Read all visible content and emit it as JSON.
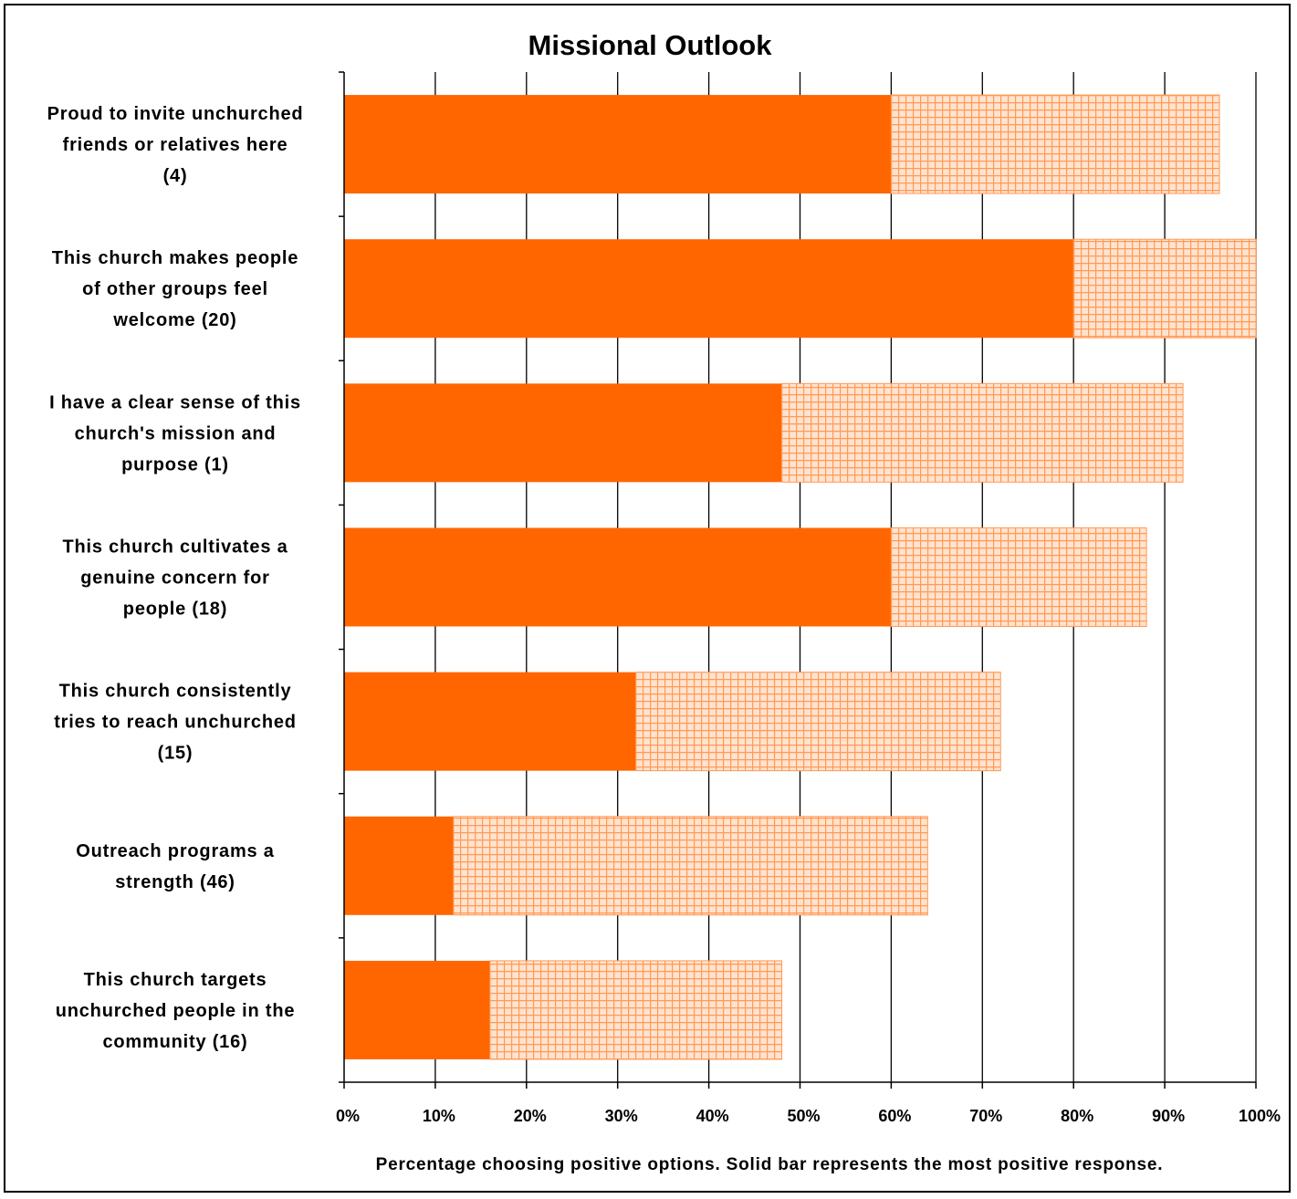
{
  "colors": {
    "solid": "#ff6600",
    "hatch_bg": "#ffe3cf",
    "hatch_line": "#ff9a55"
  },
  "chart_data": {
    "type": "bar",
    "orientation": "horizontal",
    "stacked": true,
    "title": "Missional Outlook",
    "xlabel": "Percentage choosing positive options. Solid bar represents the most positive response.",
    "ylabel": "",
    "xlim": [
      0,
      100
    ],
    "x_ticks": [
      "0%",
      "10%",
      "20%",
      "30%",
      "40%",
      "50%",
      "60%",
      "70%",
      "80%",
      "90%",
      "100%"
    ],
    "grid": true,
    "categories": [
      [
        "Proud to invite unchurched",
        "friends or relatives here",
        "(4)"
      ],
      [
        "This church makes people",
        "of other groups feel",
        "welcome (20)"
      ],
      [
        "I have a clear sense of this",
        "church's mission and",
        "purpose (1)"
      ],
      [
        "This church cultivates a",
        "genuine concern for",
        "people (18)"
      ],
      [
        "This church consistently",
        "tries to reach unchurched",
        "(15)"
      ],
      [
        "Outreach programs a",
        "strength (46)"
      ],
      [
        "This church targets",
        "unchurched people in the",
        "community (16)"
      ]
    ],
    "series": [
      {
        "style": "solid",
        "values": [
          60,
          80,
          48,
          60,
          32,
          12,
          16
        ]
      },
      {
        "style": "hatched",
        "values": [
          36,
          20,
          44,
          28,
          40,
          52,
          32
        ]
      }
    ]
  }
}
